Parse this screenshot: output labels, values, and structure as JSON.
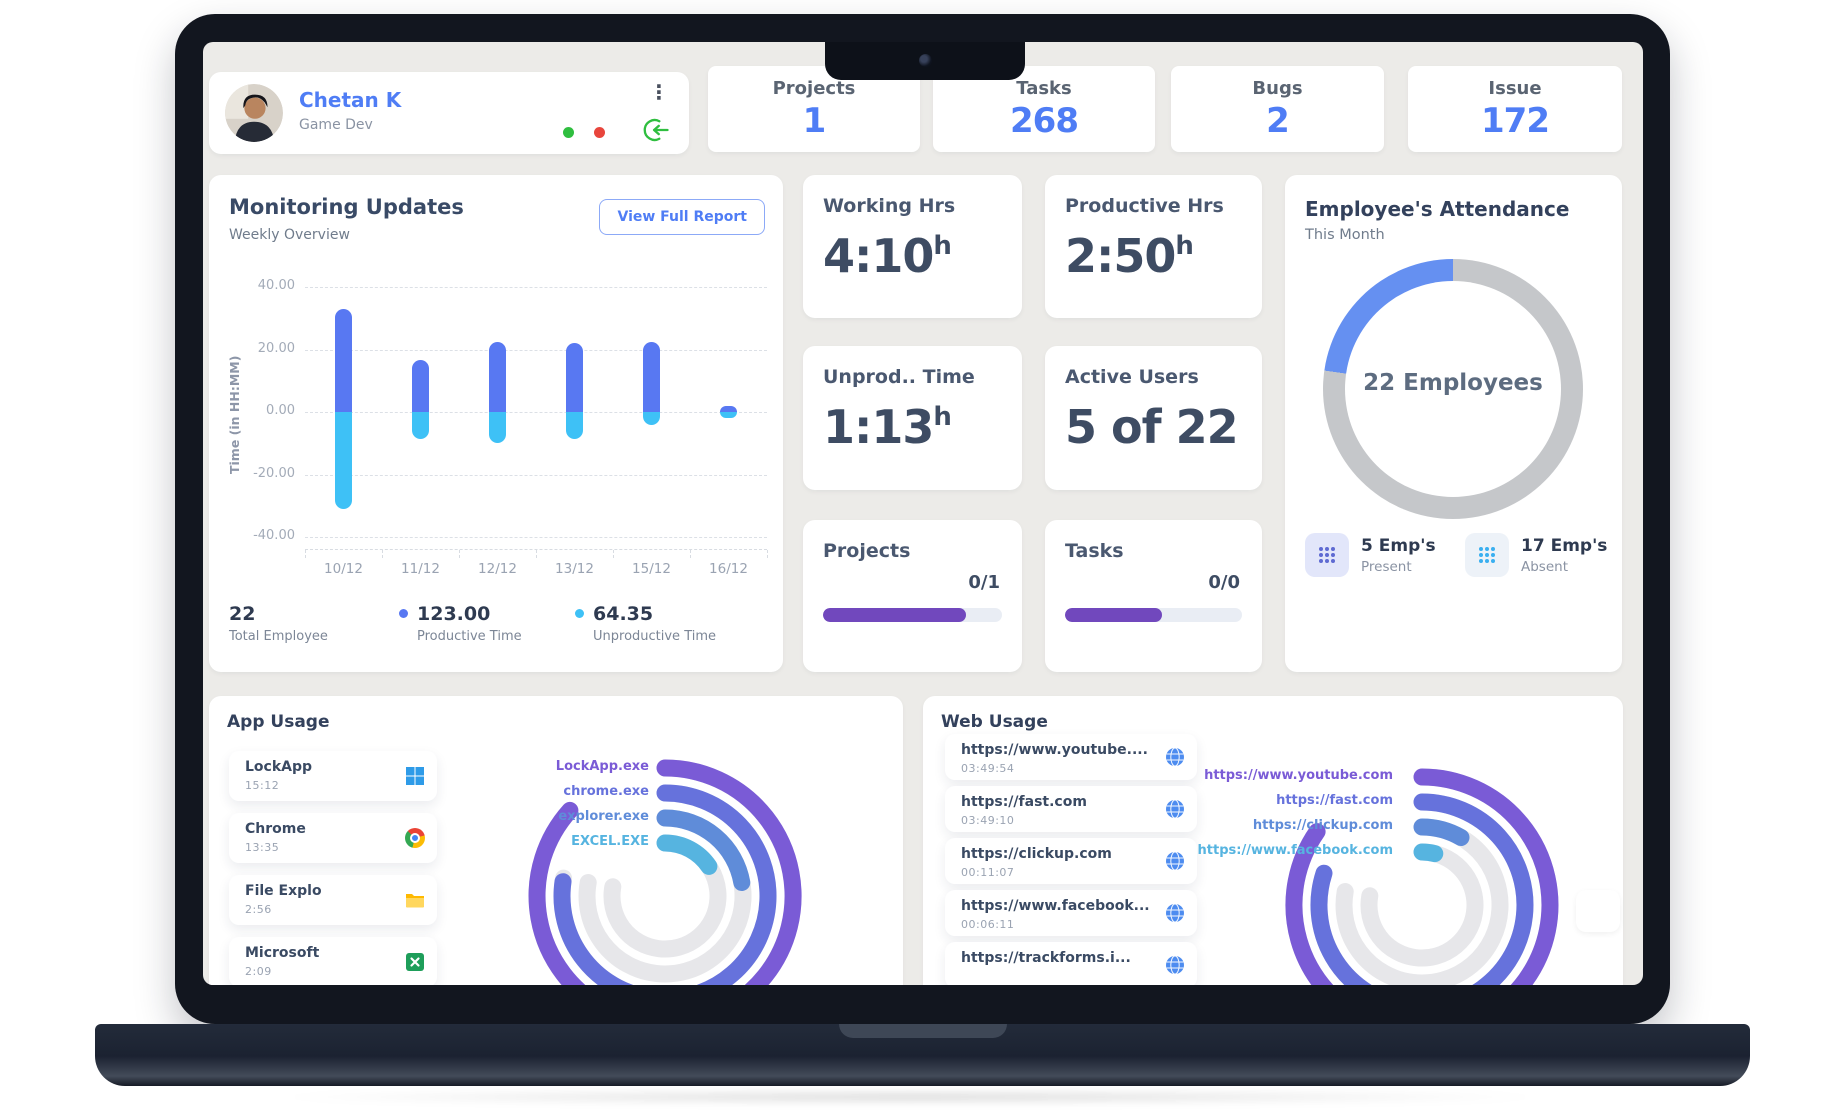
{
  "profile": {
    "name": "Chetan K",
    "role": "Game Dev"
  },
  "stat_cards": [
    {
      "label": "Projects",
      "value": "1"
    },
    {
      "label": "Tasks",
      "value": "268"
    },
    {
      "label": "Bugs",
      "value": "2"
    },
    {
      "label": "Issue",
      "value": "172"
    }
  ],
  "monitoring": {
    "title": "Monitoring Updates",
    "subtitle": "Weekly Overview",
    "button_label": "View Full Report",
    "summary": [
      {
        "value": "22",
        "label": "Total Employee",
        "dot": ""
      },
      {
        "value": "123.00",
        "label": "Productive Time",
        "dot": "#5878F2"
      },
      {
        "value": "64.35",
        "label": "Unproductive Time",
        "dot": "#3EC1F6"
      }
    ]
  },
  "metric_cards": [
    {
      "label": "Working Hrs",
      "value": "4:10",
      "unit": "h"
    },
    {
      "label": "Productive Hrs",
      "value": "2:50",
      "unit": "h"
    },
    {
      "label": "Unprod.. Time",
      "value": "1:13",
      "unit": "h"
    },
    {
      "label": "Active Users",
      "value": "5 of 22",
      "unit": ""
    }
  ],
  "progress_cards": [
    {
      "label": "Projects",
      "fraction": "0/1",
      "percent": 80,
      "color": "#7148BD"
    },
    {
      "label": "Tasks",
      "fraction": "0/0",
      "percent": 55,
      "color": "#7148BD"
    }
  ],
  "attendance": {
    "title": "Employee's Attendance",
    "subtitle": "This Month",
    "center_label": "22 Employees",
    "present": {
      "value": "5 Emp's",
      "label": "Present"
    },
    "absent": {
      "value": "17 Emp's",
      "label": "Absent"
    }
  },
  "app_usage": {
    "title": "App Usage",
    "items": [
      {
        "name": "LockApp",
        "time": "15:12",
        "icon": "windows"
      },
      {
        "name": "Chrome",
        "time": "13:35",
        "icon": "chrome"
      },
      {
        "name": "File Explo",
        "time": "2:56",
        "icon": "folder"
      },
      {
        "name": "Microsoft",
        "time": "2:09",
        "icon": "excel"
      }
    ]
  },
  "web_usage": {
    "title": "Web Usage",
    "items": [
      {
        "url": "https://www.youtube....",
        "time": "03:49:54"
      },
      {
        "url": "https://fast.com",
        "time": "03:49:10"
      },
      {
        "url": "https://clickup.com",
        "time": "00:11:07"
      },
      {
        "url": "https://www.facebook...",
        "time": "00:06:11"
      },
      {
        "url": "https://trackforms.i...",
        "time": ""
      }
    ]
  },
  "chart_data": [
    {
      "id": "weekly_overview",
      "type": "bar",
      "title": "Monitoring Updates",
      "subtitle": "Weekly Overview",
      "categories": [
        "10/12",
        "11/12",
        "12/12",
        "13/12",
        "15/12",
        "16/12"
      ],
      "series": [
        {
          "name": "Productive Time",
          "color": "#5878F2",
          "values": [
            33,
            16.5,
            22.5,
            22,
            22.5,
            2
          ]
        },
        {
          "name": "Unproductive Time",
          "color": "#3EC1F6",
          "values": [
            -31,
            -8.5,
            -10,
            -8.5,
            -4,
            -2
          ]
        }
      ],
      "xlabel": "",
      "ylabel": "Time (in HH:MM)",
      "ylim": [
        -40,
        40
      ],
      "yticks": [
        40,
        20,
        0,
        -20,
        -40
      ],
      "grid": true,
      "legend": false
    },
    {
      "id": "app_usage_radial",
      "type": "radial-bar",
      "track_color": "#E7E7EA",
      "track_sweep_deg": 280,
      "items": [
        {
          "label": "LockApp.exe",
          "color": "#7A5BD6",
          "sweep_deg": 312
        },
        {
          "label": "chrome.exe",
          "color": "#6672DC",
          "sweep_deg": 278
        },
        {
          "label": "explorer.exe",
          "color": "#5F8CD9",
          "sweep_deg": 80
        },
        {
          "label": "EXCEL.EXE",
          "color": "#56B4E0",
          "sweep_deg": 56
        }
      ]
    },
    {
      "id": "web_usage_radial",
      "type": "radial-bar",
      "track_color": "#E7E7EA",
      "track_sweep_deg": 280,
      "items": [
        {
          "label": "https://www.youtube.com",
          "color": "#7A5BD6",
          "sweep_deg": 305
        },
        {
          "label": "https://fast.com",
          "color": "#6672DC",
          "sweep_deg": 288
        },
        {
          "label": "https://clickup.com",
          "color": "#5F8CD9",
          "sweep_deg": 30
        },
        {
          "label": "https://www.facebook.com",
          "color": "#56B4E0",
          "sweep_deg": 14
        }
      ]
    },
    {
      "id": "attendance_donut",
      "type": "donut",
      "center_label": "22 Employees",
      "slices": [
        {
          "label": "Present",
          "value": 5,
          "color": "#6590F1"
        },
        {
          "label": "Absent",
          "value": 17,
          "color": "#C5C7CA"
        }
      ]
    }
  ],
  "colors": {
    "accent_blue": "#4F7DF5",
    "text_dark": "#33415C",
    "text_gray": "#8A93A3",
    "status_green": "#2FBE3F",
    "status_red": "#E8453C",
    "progress_purple": "#7148BD"
  }
}
